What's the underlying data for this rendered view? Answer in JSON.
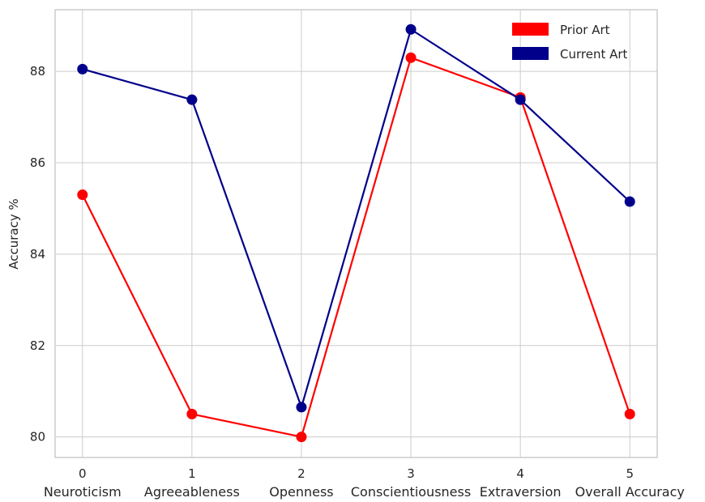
{
  "chart_data": {
    "type": "line",
    "x": [
      0,
      1,
      2,
      3,
      4,
      5
    ],
    "x_tick_labels": [
      "0",
      "1",
      "2",
      "3",
      "4",
      "5"
    ],
    "categories": [
      "Neuroticism",
      "Agreeableness",
      "Openness",
      "Conscientiousness",
      "Extraversion",
      "Overall Accuracy"
    ],
    "series": [
      {
        "name": "Prior Art",
        "color": "#ff0000",
        "values": [
          85.3,
          80.5,
          80.0,
          88.3,
          87.43,
          80.5
        ]
      },
      {
        "name": "Current Art",
        "color": "#00008b",
        "values": [
          88.05,
          87.38,
          80.65,
          88.92,
          87.38,
          85.15
        ]
      }
    ],
    "ylabel": "Accuracy %",
    "xlabel": "",
    "title": "",
    "xlim": [
      -0.25,
      5.25
    ],
    "ylim": [
      79.55,
      89.35
    ],
    "y_ticks": [
      80,
      82,
      84,
      86,
      88
    ],
    "grid": true,
    "legend_position": "top-right"
  }
}
